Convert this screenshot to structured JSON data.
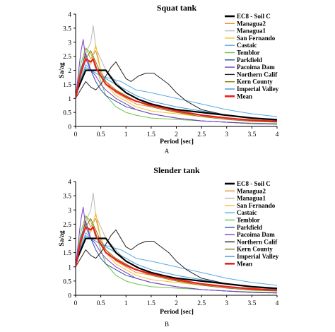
{
  "series_styles": [
    {
      "name": "EC8 - Soil C",
      "color": "#000000",
      "width": 2.2
    },
    {
      "name": "Managua2",
      "color": "#f28e2b",
      "width": 1
    },
    {
      "name": "Managua1",
      "color": "#b8b8b8",
      "width": 1
    },
    {
      "name": "San Fernando",
      "color": "#f2c12e",
      "width": 1
    },
    {
      "name": "Castaic",
      "color": "#5aa9e6",
      "width": 1
    },
    {
      "name": "Temblor",
      "color": "#6cc24a",
      "width": 1
    },
    {
      "name": "Parkfield",
      "color": "#2b4fa8",
      "width": 1
    },
    {
      "name": "Pacoima Dam",
      "color": "#7b3fc4",
      "width": 1
    },
    {
      "name": "Northern Calif",
      "color": "#222222",
      "width": 1
    },
    {
      "name": "Kern County",
      "color": "#8a7b1a",
      "width": 1
    },
    {
      "name": "Imperial Valley",
      "color": "#3b9ad9",
      "width": 1
    },
    {
      "name": "Mean",
      "color": "#e8201e",
      "width": 2.2
    }
  ],
  "chart_data": [
    {
      "type": "line",
      "title": "Squat tank",
      "panel_label": "A",
      "xlabel": "Period [sec]",
      "ylabel": "Sa/ag",
      "xlim": [
        0,
        4
      ],
      "ylim": [
        0,
        4
      ],
      "xticks": [
        "0",
        "0.5",
        "1",
        "1.5",
        "2",
        "2.5",
        "3",
        "3.5",
        "4"
      ],
      "yticks": [
        "0",
        "0.5",
        "1",
        "1.5",
        "2",
        "2.5",
        "3",
        "3.5",
        "4"
      ],
      "legend_position": "right",
      "series": [
        {
          "name": "EC8 - Soil C",
          "x": [
            0,
            0.2,
            0.6,
            0.8,
            1.0,
            1.25,
            1.5,
            1.75,
            2.0,
            2.5,
            3.0,
            3.5,
            4.0
          ],
          "y": [
            1.15,
            2.0,
            2.0,
            1.5,
            1.2,
            0.96,
            0.8,
            0.69,
            0.6,
            0.5,
            0.4,
            0.3,
            0.24
          ]
        },
        {
          "name": "Managua2",
          "x": [
            0,
            0.1,
            0.2,
            0.3,
            0.4,
            0.5,
            0.6,
            0.8,
            1.0,
            1.2,
            1.5,
            2.0,
            2.5,
            3.0,
            3.5,
            4.0
          ],
          "y": [
            1.0,
            1.8,
            2.8,
            2.4,
            2.7,
            2.0,
            1.6,
            1.2,
            1.0,
            0.8,
            0.7,
            0.5,
            0.4,
            0.3,
            0.25,
            0.2
          ]
        },
        {
          "name": "Managua1",
          "x": [
            0,
            0.1,
            0.2,
            0.3,
            0.35,
            0.4,
            0.5,
            0.6,
            0.8,
            1.0,
            1.2,
            1.5,
            2.0,
            2.5,
            3.0,
            3.5,
            4.0
          ],
          "y": [
            1.0,
            1.6,
            2.6,
            3.0,
            3.6,
            2.8,
            2.4,
            2.0,
            1.6,
            1.2,
            1.0,
            0.8,
            0.6,
            0.5,
            0.4,
            0.3,
            0.25
          ]
        },
        {
          "name": "San Fernando",
          "x": [
            0,
            0.1,
            0.2,
            0.3,
            0.4,
            0.5,
            0.6,
            0.8,
            1.0,
            1.2,
            1.5,
            2.0,
            2.5,
            3.0,
            3.5,
            4.0
          ],
          "y": [
            1.0,
            2.0,
            2.5,
            2.2,
            2.9,
            2.0,
            1.5,
            1.1,
            0.9,
            0.7,
            0.55,
            0.45,
            0.35,
            0.3,
            0.22,
            0.18
          ]
        },
        {
          "name": "Castaic",
          "x": [
            0,
            0.1,
            0.2,
            0.3,
            0.4,
            0.5,
            0.7,
            0.9,
            1.0,
            1.2,
            1.5,
            2.0,
            2.5,
            3.0,
            3.5,
            4.0
          ],
          "y": [
            1.0,
            1.6,
            2.2,
            2.0,
            1.9,
            1.8,
            1.7,
            1.6,
            1.5,
            1.3,
            1.2,
            1.0,
            0.8,
            0.6,
            0.45,
            0.35
          ]
        },
        {
          "name": "Temblor",
          "x": [
            0,
            0.1,
            0.2,
            0.3,
            0.4,
            0.5,
            0.6,
            0.8,
            1.0,
            1.2,
            1.5,
            2.0,
            2.5,
            3.0,
            3.5,
            4.0
          ],
          "y": [
            1.0,
            2.2,
            2.8,
            2.6,
            2.2,
            1.6,
            1.1,
            0.7,
            0.5,
            0.4,
            0.3,
            0.25,
            0.2,
            0.15,
            0.12,
            0.1
          ]
        },
        {
          "name": "Parkfield",
          "x": [
            0,
            0.1,
            0.2,
            0.3,
            0.4,
            0.5,
            0.6,
            0.8,
            1.0,
            1.2,
            1.5,
            2.0,
            2.5,
            3.0,
            3.5,
            4.0
          ],
          "y": [
            1.0,
            2.0,
            2.6,
            2.0,
            1.6,
            1.3,
            1.1,
            0.9,
            0.7,
            0.6,
            0.45,
            0.3,
            0.2,
            0.15,
            0.1,
            0.08
          ]
        },
        {
          "name": "Pacoima Dam",
          "x": [
            0,
            0.1,
            0.15,
            0.2,
            0.3,
            0.4,
            0.5,
            0.6,
            0.8,
            1.0,
            1.2,
            1.5,
            2.0,
            2.5,
            3.0,
            3.5,
            4.0
          ],
          "y": [
            1.0,
            2.6,
            3.1,
            2.4,
            2.0,
            1.8,
            1.5,
            1.3,
            1.0,
            0.8,
            0.6,
            0.45,
            0.3,
            0.2,
            0.15,
            0.1,
            0.08
          ]
        },
        {
          "name": "Northern Calif",
          "x": [
            0,
            0.1,
            0.2,
            0.3,
            0.4,
            0.5,
            0.6,
            0.7,
            0.8,
            0.9,
            1.0,
            1.1,
            1.25,
            1.4,
            1.55,
            1.7,
            1.85,
            2.0,
            2.2,
            2.5,
            3.0,
            3.5,
            4.0
          ],
          "y": [
            1.0,
            1.3,
            1.6,
            1.4,
            1.3,
            1.5,
            1.8,
            2.1,
            2.3,
            2.0,
            1.7,
            1.6,
            1.8,
            1.9,
            1.9,
            1.7,
            1.5,
            1.2,
            0.9,
            0.6,
            0.4,
            0.3,
            0.25
          ]
        },
        {
          "name": "Kern County",
          "x": [
            0,
            0.1,
            0.2,
            0.3,
            0.4,
            0.5,
            0.6,
            0.8,
            1.0,
            1.2,
            1.5,
            2.0,
            2.5,
            3.0,
            3.5,
            4.0
          ],
          "y": [
            1.0,
            1.8,
            2.4,
            2.7,
            2.3,
            1.9,
            1.6,
            1.3,
            1.1,
            0.9,
            0.7,
            0.5,
            0.35,
            0.25,
            0.18,
            0.15
          ]
        },
        {
          "name": "Imperial Valley",
          "x": [
            0,
            0.1,
            0.2,
            0.3,
            0.4,
            0.5,
            0.6,
            0.8,
            1.0,
            1.2,
            1.5,
            2.0,
            2.5,
            3.0,
            3.5,
            4.0
          ],
          "y": [
            1.0,
            1.7,
            2.1,
            2.0,
            1.9,
            1.8,
            1.7,
            1.5,
            1.3,
            1.1,
            0.9,
            0.7,
            0.55,
            0.4,
            0.3,
            0.2
          ]
        },
        {
          "name": "Mean",
          "x": [
            0,
            0.1,
            0.2,
            0.3,
            0.35,
            0.4,
            0.5,
            0.6,
            0.8,
            1.0,
            1.2,
            1.5,
            2.0,
            2.5,
            3.0,
            3.5,
            4.0
          ],
          "y": [
            1.0,
            1.9,
            2.4,
            2.3,
            2.4,
            2.1,
            1.8,
            1.5,
            1.25,
            1.05,
            0.9,
            0.75,
            0.55,
            0.4,
            0.3,
            0.22,
            0.18
          ]
        }
      ]
    },
    {
      "type": "line",
      "title": "Slender tank",
      "panel_label": "B",
      "xlabel": "Period [sec]",
      "ylabel": "Sa/ag",
      "xlim": [
        0,
        4
      ],
      "ylim": [
        0,
        4
      ],
      "xticks": [
        "0",
        "0.5",
        "1",
        "1.5",
        "2",
        "2.5",
        "3",
        "3.5",
        "4"
      ],
      "yticks": [
        "0",
        "0.5",
        "1",
        "1.5",
        "2",
        "2.5",
        "3",
        "3.5",
        "4"
      ],
      "legend_position": "right",
      "series": [
        {
          "name": "EC8 - Soil C",
          "x": [
            0,
            0.2,
            0.6,
            0.8,
            1.0,
            1.25,
            1.5,
            1.75,
            2.0,
            2.5,
            3.0,
            3.5,
            4.0
          ],
          "y": [
            1.15,
            2.0,
            2.0,
            1.5,
            1.2,
            0.96,
            0.8,
            0.69,
            0.6,
            0.5,
            0.4,
            0.3,
            0.24
          ]
        },
        {
          "name": "Managua2",
          "x": [
            0,
            0.1,
            0.2,
            0.3,
            0.4,
            0.5,
            0.6,
            0.8,
            1.0,
            1.2,
            1.5,
            2.0,
            2.5,
            3.0,
            3.5,
            4.0
          ],
          "y": [
            1.0,
            1.8,
            2.8,
            2.4,
            2.7,
            2.0,
            1.6,
            1.2,
            1.0,
            0.8,
            0.7,
            0.5,
            0.4,
            0.3,
            0.25,
            0.2
          ]
        },
        {
          "name": "Managua1",
          "x": [
            0,
            0.1,
            0.2,
            0.3,
            0.35,
            0.4,
            0.5,
            0.6,
            0.8,
            1.0,
            1.2,
            1.5,
            2.0,
            2.5,
            3.0,
            3.5,
            4.0
          ],
          "y": [
            1.0,
            1.6,
            2.6,
            3.0,
            3.6,
            2.8,
            2.4,
            2.0,
            1.6,
            1.2,
            1.0,
            0.8,
            0.6,
            0.5,
            0.4,
            0.3,
            0.25
          ]
        },
        {
          "name": "San Fernando",
          "x": [
            0,
            0.1,
            0.2,
            0.3,
            0.4,
            0.5,
            0.6,
            0.8,
            1.0,
            1.2,
            1.5,
            2.0,
            2.5,
            3.0,
            3.5,
            4.0
          ],
          "y": [
            1.0,
            2.0,
            2.5,
            2.2,
            2.9,
            2.0,
            1.5,
            1.1,
            0.9,
            0.7,
            0.55,
            0.45,
            0.35,
            0.3,
            0.22,
            0.18
          ]
        },
        {
          "name": "Castaic",
          "x": [
            0,
            0.1,
            0.2,
            0.3,
            0.4,
            0.5,
            0.7,
            0.9,
            1.0,
            1.2,
            1.5,
            2.0,
            2.5,
            3.0,
            3.5,
            4.0
          ],
          "y": [
            1.0,
            1.6,
            2.2,
            2.0,
            1.9,
            1.8,
            1.7,
            1.6,
            1.5,
            1.3,
            1.2,
            1.0,
            0.8,
            0.6,
            0.45,
            0.35
          ]
        },
        {
          "name": "Temblor",
          "x": [
            0,
            0.1,
            0.2,
            0.3,
            0.4,
            0.5,
            0.6,
            0.8,
            1.0,
            1.2,
            1.5,
            2.0,
            2.5,
            3.0,
            3.5,
            4.0
          ],
          "y": [
            1.0,
            2.2,
            2.8,
            2.6,
            2.2,
            1.6,
            1.1,
            0.7,
            0.5,
            0.4,
            0.3,
            0.25,
            0.2,
            0.15,
            0.12,
            0.1
          ]
        },
        {
          "name": "Parkfield",
          "x": [
            0,
            0.1,
            0.2,
            0.3,
            0.4,
            0.5,
            0.6,
            0.8,
            1.0,
            1.2,
            1.5,
            2.0,
            2.5,
            3.0,
            3.5,
            4.0
          ],
          "y": [
            1.0,
            2.0,
            2.6,
            2.0,
            1.6,
            1.3,
            1.1,
            0.9,
            0.7,
            0.6,
            0.45,
            0.3,
            0.2,
            0.15,
            0.1,
            0.08
          ]
        },
        {
          "name": "Pacoima Dam",
          "x": [
            0,
            0.1,
            0.15,
            0.2,
            0.3,
            0.4,
            0.5,
            0.6,
            0.8,
            1.0,
            1.2,
            1.5,
            2.0,
            2.5,
            3.0,
            3.5,
            4.0
          ],
          "y": [
            1.0,
            2.6,
            3.1,
            2.4,
            2.0,
            1.8,
            1.5,
            1.3,
            1.0,
            0.8,
            0.6,
            0.45,
            0.3,
            0.2,
            0.15,
            0.1,
            0.08
          ]
        },
        {
          "name": "Northern Calif",
          "x": [
            0,
            0.1,
            0.2,
            0.3,
            0.4,
            0.5,
            0.6,
            0.7,
            0.8,
            0.9,
            1.0,
            1.1,
            1.25,
            1.4,
            1.55,
            1.7,
            1.85,
            2.0,
            2.2,
            2.5,
            3.0,
            3.5,
            4.0
          ],
          "y": [
            1.0,
            1.3,
            1.6,
            1.4,
            1.3,
            1.5,
            1.8,
            2.1,
            2.3,
            2.0,
            1.7,
            1.6,
            1.8,
            1.9,
            1.9,
            1.7,
            1.5,
            1.2,
            0.9,
            0.6,
            0.4,
            0.3,
            0.25
          ]
        },
        {
          "name": "Kern County",
          "x": [
            0,
            0.1,
            0.2,
            0.3,
            0.4,
            0.5,
            0.6,
            0.8,
            1.0,
            1.2,
            1.5,
            2.0,
            2.5,
            3.0,
            3.5,
            4.0
          ],
          "y": [
            1.0,
            1.8,
            2.4,
            2.7,
            2.3,
            1.9,
            1.6,
            1.3,
            1.1,
            0.9,
            0.7,
            0.5,
            0.35,
            0.25,
            0.18,
            0.15
          ]
        },
        {
          "name": "Imperial Valley",
          "x": [
            0,
            0.1,
            0.2,
            0.3,
            0.4,
            0.5,
            0.6,
            0.8,
            1.0,
            1.2,
            1.5,
            2.0,
            2.5,
            3.0,
            3.5,
            4.0
          ],
          "y": [
            1.0,
            1.7,
            2.1,
            2.0,
            1.9,
            1.8,
            1.7,
            1.5,
            1.3,
            1.1,
            0.9,
            0.7,
            0.55,
            0.4,
            0.3,
            0.2
          ]
        },
        {
          "name": "Mean",
          "x": [
            0,
            0.1,
            0.2,
            0.3,
            0.35,
            0.4,
            0.5,
            0.6,
            0.8,
            1.0,
            1.2,
            1.5,
            2.0,
            2.5,
            3.0,
            3.5,
            4.0
          ],
          "y": [
            1.0,
            1.9,
            2.4,
            2.3,
            2.4,
            2.1,
            1.8,
            1.5,
            1.25,
            1.05,
            0.9,
            0.75,
            0.55,
            0.4,
            0.3,
            0.22,
            0.18
          ]
        }
      ]
    }
  ]
}
